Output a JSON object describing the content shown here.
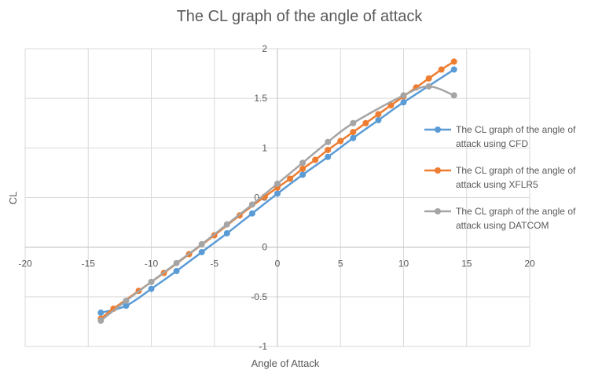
{
  "chart_data": {
    "type": "line",
    "title": "The CL graph of the angle of attack",
    "xlabel": "Angle of Attack",
    "ylabel": "CL",
    "xlim": [
      -20,
      20
    ],
    "ylim": [
      -1,
      2
    ],
    "xticks": [
      -20,
      -15,
      -10,
      -5,
      0,
      5,
      10,
      15,
      20
    ],
    "yticks": [
      -1,
      -0.5,
      0,
      0.5,
      1,
      1.5,
      2
    ],
    "xtick_labels": [
      "-20",
      "-15",
      "-10",
      "-5",
      "0",
      "5",
      "10",
      "15",
      "20"
    ],
    "ytick_labels": [
      "-1",
      "-0.5",
      "0",
      "0.5",
      "1",
      "1.5",
      "2"
    ],
    "grid": "vertical and horizontal",
    "legend_position": "right",
    "series": [
      {
        "name": "The CL graph of the angle of attack using CFD",
        "color": "#5b9bd5",
        "x": [
          -14,
          -12,
          -10,
          -8,
          -6,
          -4,
          -2,
          0,
          2,
          4,
          6,
          8,
          10,
          14
        ],
        "y": [
          -0.66,
          -0.59,
          -0.42,
          -0.24,
          -0.05,
          0.14,
          0.34,
          0.54,
          0.73,
          0.91,
          1.1,
          1.28,
          1.46,
          1.79
        ]
      },
      {
        "name": "The CL graph of the angle of attack using XFLR5",
        "color": "#ed7d31",
        "x": [
          -14,
          -13,
          -11,
          -9,
          -7,
          -5,
          -3,
          -1,
          0,
          1,
          2,
          3,
          4,
          5,
          6,
          7,
          8,
          9,
          10,
          11,
          12,
          13,
          14
        ],
        "y": [
          -0.72,
          -0.62,
          -0.44,
          -0.26,
          -0.07,
          0.12,
          0.32,
          0.51,
          0.6,
          0.69,
          0.79,
          0.88,
          0.98,
          1.07,
          1.16,
          1.25,
          1.34,
          1.43,
          1.52,
          1.61,
          1.7,
          1.79,
          1.87
        ]
      },
      {
        "name": "The CL graph of the angle of attack using DATCOM",
        "color": "#a5a5a5",
        "x": [
          -14,
          -12,
          -10,
          -8,
          -6,
          -4,
          -2,
          0,
          2,
          4,
          6,
          10,
          12,
          14
        ],
        "y": [
          -0.74,
          -0.54,
          -0.35,
          -0.16,
          0.03,
          0.23,
          0.43,
          0.64,
          0.85,
          1.06,
          1.25,
          1.53,
          1.62,
          1.53
        ]
      }
    ],
    "legend_lines": [
      [
        "The CL graph of the angle of",
        "attack using CFD"
      ],
      [
        "The CL graph of the angle of",
        "attack using XFLR5"
      ],
      [
        "The CL graph of the angle of",
        "attack using DATCOM"
      ]
    ]
  }
}
